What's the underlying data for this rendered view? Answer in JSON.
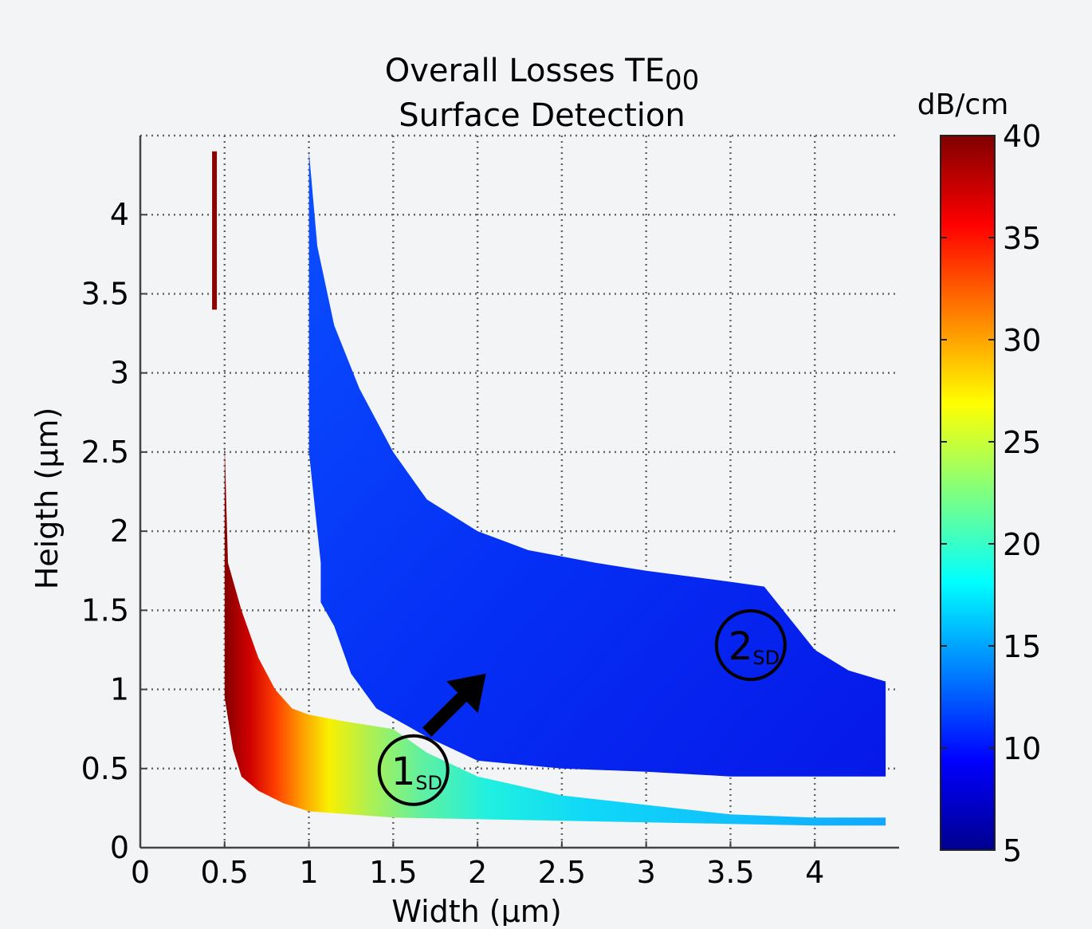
{
  "chart_data": {
    "type": "heatmap",
    "title": "Overall Losses TE",
    "title_subscript": "00",
    "subtitle": "Surface Detection",
    "xlabel": "Width (µm)",
    "ylabel": "Heigth (µm)",
    "xlim": [
      0,
      4.5
    ],
    "ylim": [
      0,
      4.5
    ],
    "x_ticks": [
      "0",
      "0.5",
      "1",
      "1.5",
      "2",
      "2.5",
      "3",
      "3.5",
      "4"
    ],
    "y_ticks": [
      "0",
      "0.5",
      "1",
      "1.5",
      "2",
      "2.5",
      "3",
      "3.5",
      "4"
    ],
    "grid": true,
    "colormap": "jet",
    "colorbar": {
      "label": "dB/cm",
      "range": [
        5,
        40
      ],
      "ticks": [
        "5",
        "10",
        "15",
        "20",
        "25",
        "30",
        "35",
        "40"
      ]
    },
    "regions": [
      {
        "id": "mode-1",
        "value_range_db_cm": [
          16,
          40
        ],
        "boundary_lower": [
          [
            0.5,
            0.95
          ],
          [
            0.55,
            0.62
          ],
          [
            0.6,
            0.45
          ],
          [
            0.7,
            0.36
          ],
          [
            0.85,
            0.28
          ],
          [
            1.0,
            0.23
          ],
          [
            1.5,
            0.19
          ],
          [
            2.0,
            0.18
          ],
          [
            2.5,
            0.17
          ],
          [
            3.0,
            0.16
          ],
          [
            3.5,
            0.15
          ],
          [
            4.0,
            0.14
          ],
          [
            4.42,
            0.14
          ]
        ],
        "boundary_upper": [
          [
            0.5,
            2.55
          ],
          [
            0.52,
            1.8
          ],
          [
            0.6,
            1.5
          ],
          [
            0.7,
            1.2
          ],
          [
            0.8,
            1.0
          ],
          [
            0.9,
            0.88
          ],
          [
            1.0,
            0.84
          ],
          [
            1.2,
            0.8
          ],
          [
            1.5,
            0.75
          ],
          [
            1.7,
            0.6
          ],
          [
            2.0,
            0.45
          ],
          [
            2.5,
            0.33
          ],
          [
            3.0,
            0.27
          ],
          [
            3.5,
            0.21
          ],
          [
            4.0,
            0.19
          ],
          [
            4.42,
            0.19
          ]
        ]
      },
      {
        "id": "mode-2",
        "value_range_db_cm": [
          7,
          9
        ],
        "boundary_left_top": [
          [
            1.0,
            4.4
          ],
          [
            1.05,
            3.8
          ],
          [
            1.15,
            3.3
          ],
          [
            1.3,
            2.9
          ],
          [
            1.5,
            2.5
          ],
          [
            1.7,
            2.2
          ],
          [
            2.0,
            2.0
          ],
          [
            2.3,
            1.88
          ],
          [
            2.7,
            1.8
          ],
          [
            3.0,
            1.75
          ],
          [
            3.5,
            1.68
          ],
          [
            3.7,
            1.65
          ]
        ],
        "boundary_right": [
          [
            3.7,
            1.65
          ],
          [
            3.85,
            1.45
          ],
          [
            4.0,
            1.25
          ],
          [
            4.2,
            1.12
          ],
          [
            4.42,
            1.05
          ],
          [
            4.42,
            0.45
          ]
        ],
        "boundary_bottom": [
          [
            4.42,
            0.45
          ],
          [
            3.5,
            0.45
          ],
          [
            3.0,
            0.48
          ],
          [
            2.5,
            0.5
          ],
          [
            2.0,
            0.55
          ],
          [
            1.7,
            0.7
          ],
          [
            1.4,
            0.88
          ],
          [
            1.25,
            1.1
          ],
          [
            1.15,
            1.4
          ],
          [
            1.07,
            1.55
          ],
          [
            1.07,
            1.8
          ],
          [
            1.0,
            2.5
          ],
          [
            1.0,
            4.4
          ]
        ]
      },
      {
        "id": "thin-strip",
        "value_db_cm": 38,
        "x": 0.44,
        "y_range": [
          3.4,
          4.4
        ]
      }
    ],
    "annotations": [
      {
        "label": "1",
        "subscript": "SD",
        "x": 1.62,
        "y": 0.49
      },
      {
        "label": "2",
        "subscript": "SD",
        "x": 3.62,
        "y": 1.28
      },
      {
        "type": "arrow",
        "from": [
          1.7,
          0.73
        ],
        "to": [
          2.05,
          1.1
        ]
      }
    ]
  }
}
